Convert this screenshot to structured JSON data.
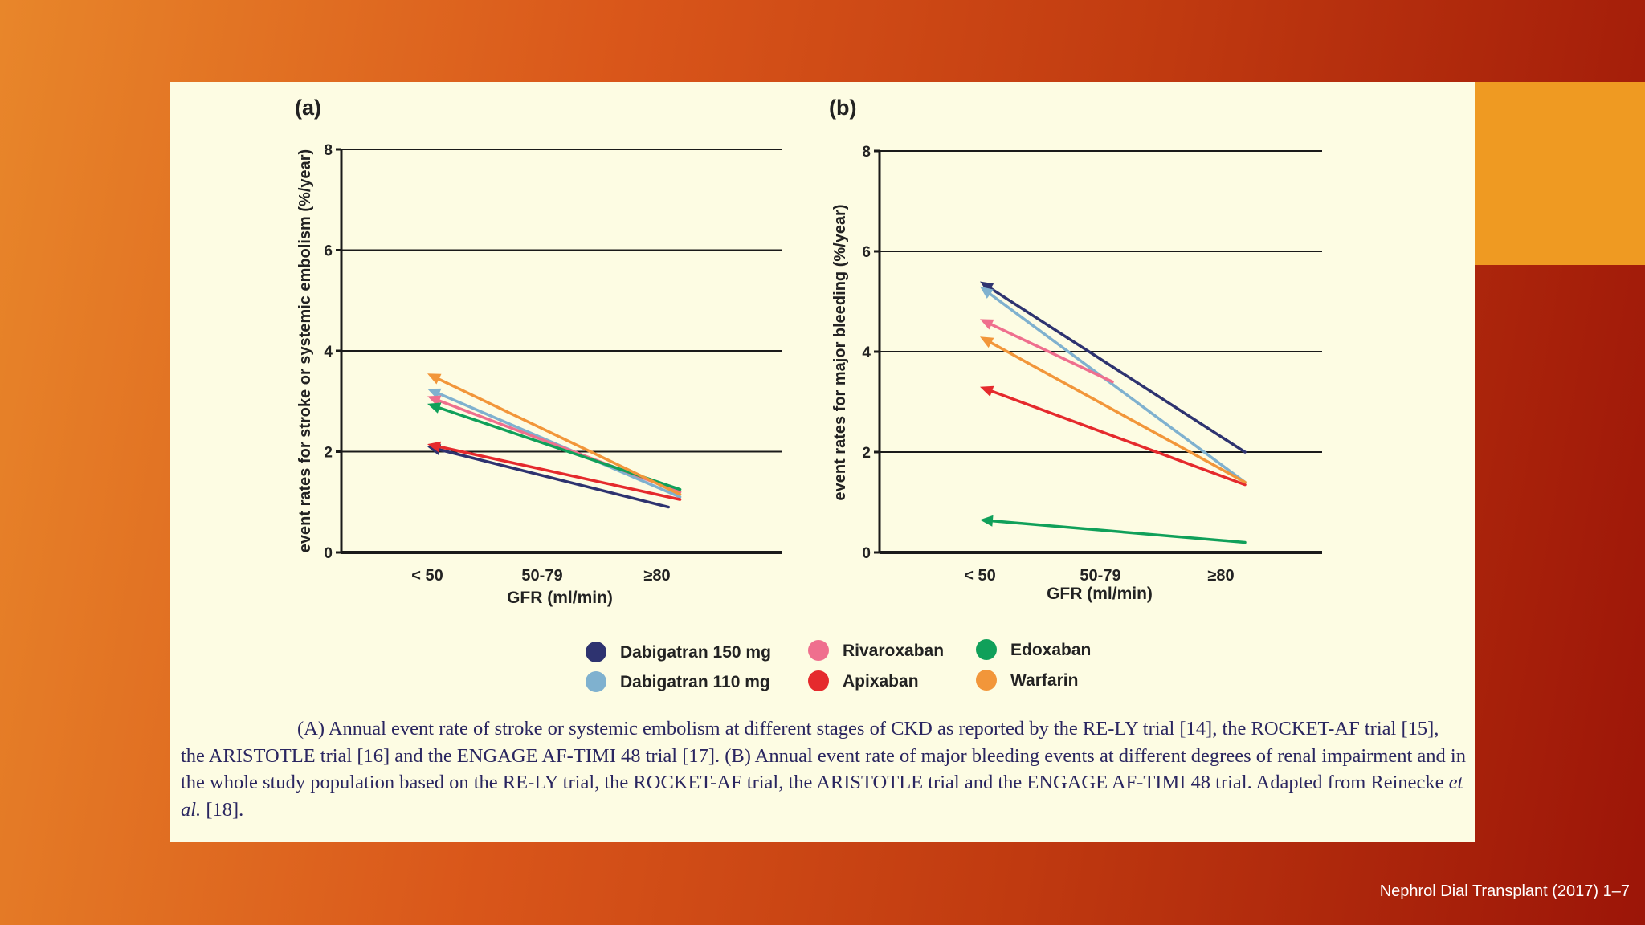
{
  "slide": {
    "source_note": "Nephrol Dial Transplant (2017) 1–7",
    "accent_color": "#ef9a22",
    "panel_color": "#fdfce3"
  },
  "legend": [
    {
      "name": "Dabigatran 150 mg",
      "color": "#2e3370"
    },
    {
      "name": "Dabigatran 110 mg",
      "color": "#7fb1cf"
    },
    {
      "name": "Rivaroxaban",
      "color": "#ef6f8e"
    },
    {
      "name": "Apixaban",
      "color": "#e52a2d"
    },
    {
      "name": "Edoxaban",
      "color": "#10a05a"
    },
    {
      "name": "Warfarin",
      "color": "#f2963a"
    }
  ],
  "chart_data": [
    {
      "panel_label": "(a)",
      "type": "line",
      "xlabel": "GFR (ml/min)",
      "ylabel": "event rates for stroke or systemic embolism (%/year)",
      "categories": [
        "< 50",
        "50-79",
        "≥80"
      ],
      "yticks": [
        "0",
        "2",
        "4",
        "6",
        "8"
      ],
      "ylim": [
        0,
        8
      ],
      "grid": true,
      "series": [
        {
          "name": "Dabigatran 150 mg",
          "x": [
            0,
            2.1
          ],
          "values": [
            2.1,
            0.9
          ]
        },
        {
          "name": "Dabigatran 110 mg",
          "x": [
            0,
            2.2
          ],
          "values": [
            3.25,
            1.1
          ]
        },
        {
          "name": "Rivaroxaban",
          "x": [
            0,
            2.2
          ],
          "values": [
            3.1,
            1.2
          ]
        },
        {
          "name": "Apixaban",
          "x": [
            0,
            2.2
          ],
          "values": [
            2.15,
            1.05
          ]
        },
        {
          "name": "Edoxaban",
          "x": [
            0,
            2.2
          ],
          "values": [
            2.95,
            1.25
          ]
        },
        {
          "name": "Warfarin",
          "x": [
            0,
            2.2
          ],
          "values": [
            3.55,
            1.15
          ]
        }
      ]
    },
    {
      "panel_label": "(b)",
      "type": "line",
      "xlabel": "GFR (ml/min)",
      "ylabel": "event rates for major bleeding (%/year)",
      "categories": [
        "< 50",
        "50-79",
        "≥80"
      ],
      "yticks": [
        "0",
        "2",
        "4",
        "6",
        "8"
      ],
      "ylim": [
        0,
        8
      ],
      "grid": true,
      "series": [
        {
          "name": "Dabigatran 150 mg",
          "x": [
            0,
            2.2
          ],
          "values": [
            5.4,
            2.0
          ]
        },
        {
          "name": "Dabigatran 110 mg",
          "x": [
            0,
            2.2
          ],
          "values": [
            5.3,
            1.4
          ]
        },
        {
          "name": "Rivaroxaban",
          "x": [
            0,
            1.1
          ],
          "values": [
            4.65,
            3.4
          ]
        },
        {
          "name": "Apixaban",
          "x": [
            0,
            2.2
          ],
          "values": [
            3.3,
            1.35
          ]
        },
        {
          "name": "Edoxaban",
          "x": [
            0,
            2.2
          ],
          "values": [
            0.65,
            0.2
          ]
        },
        {
          "name": "Warfarin",
          "x": [
            0,
            2.2
          ],
          "values": [
            4.3,
            1.4
          ]
        }
      ]
    }
  ],
  "caption": {
    "text1": "(A) Annual event rate of stroke or systemic embolism at different stages of CKD as reported by the RE-LY trial [14], the ROCKET-AF trial [15], the ARISTOTLE trial [16] and the ENGAGE AF-TIMI 48 trial [17]. (B) Annual event rate of major bleeding events at different degrees of renal impairment and in the whole study population based on the RE-LY trial, the ROCKET-AF trial, the ARISTOTLE trial and the ENGAGE AF-TIMI 48 trial. Adapted from Reinecke ",
    "italic": "et al.",
    "text2": " [18]."
  }
}
